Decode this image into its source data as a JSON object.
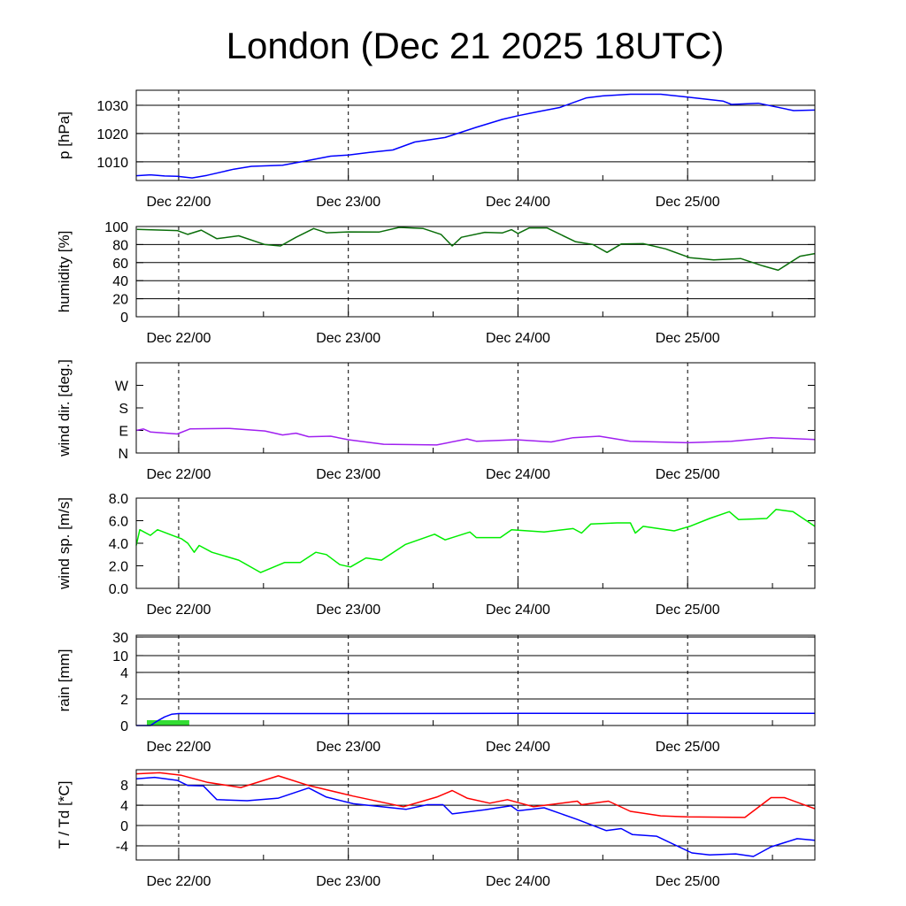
{
  "title": "London (Dec 21 2025 18UTC)",
  "x_axis": {
    "unit": "hours since Dec 21 18UTC",
    "range": [
      0,
      96
    ],
    "major_ticks": [
      6,
      30,
      54,
      78
    ],
    "labels": [
      "Dec 22/00",
      "Dec 23/00",
      "Dec 24/00",
      "Dec 25/00"
    ],
    "minor_ticks": [
      18,
      42,
      66,
      90
    ]
  },
  "chart_data": [
    {
      "type": "line",
      "id": "pressure",
      "ylabel": "p [hPa]",
      "ylim": [
        1003.4,
        1035.3
      ],
      "ticks": [
        1010,
        1020,
        1030
      ],
      "tick_labels": [
        "1010",
        "1020",
        "1030"
      ],
      "grid": true,
      "series": [
        {
          "name": "pressure",
          "color": "#0000ff",
          "x": [
            0,
            2,
            4,
            5.8,
            7.9,
            10,
            13.8,
            16.3,
            20.7,
            24,
            27.5,
            30,
            33,
            36.3,
            39.4,
            43.7,
            48.1,
            51.8,
            54,
            57,
            59.9,
            63.7,
            66,
            69.9,
            74.2,
            78,
            83,
            84.2,
            88,
            93,
            96
          ],
          "y": [
            1005.1,
            1005.4,
            1005.0,
            1004.9,
            1004.3,
            1005.2,
            1007.4,
            1008.4,
            1008.8,
            1010.3,
            1012.0,
            1012.4,
            1013.3,
            1014.2,
            1017.0,
            1018.6,
            1022.2,
            1025.0,
            1026.3,
            1027.8,
            1029.2,
            1032.6,
            1033.3,
            1033.9,
            1033.9,
            1032.9,
            1031.5,
            1030.3,
            1030.7,
            1028.1,
            1028.3
          ]
        }
      ]
    },
    {
      "type": "line",
      "id": "humidity",
      "ylabel": "humidity [%]",
      "ylim": [
        0,
        100
      ],
      "ticks": [
        0,
        20,
        40,
        60,
        80,
        100
      ],
      "tick_labels": [
        "0",
        "20",
        "40",
        "60",
        "80",
        "100"
      ],
      "grid": true,
      "series": [
        {
          "name": "humidity",
          "color": "#0a6e0a",
          "x": [
            0.1,
            5.8,
            7.3,
            9.2,
            11.4,
            14.5,
            18.2,
            20.4,
            22.6,
            25.1,
            26.9,
            30,
            34.4,
            37.2,
            40.6,
            43.1,
            44.7,
            46,
            49.3,
            51.8,
            53.1,
            54,
            55.6,
            58.1,
            62.1,
            64.6,
            66.6,
            68.6,
            71.7,
            74.9,
            78.3,
            81.7,
            85.5,
            88.6,
            90.8,
            93.9,
            96
          ],
          "y": [
            96.8,
            95.5,
            91.3,
            96,
            86.5,
            89.7,
            80,
            78.4,
            88,
            97.7,
            93,
            94,
            93.9,
            99,
            97.7,
            91.3,
            78.4,
            88,
            93.5,
            92.9,
            96.5,
            92.3,
            98.4,
            98.4,
            83.2,
            80,
            71.3,
            80.6,
            81,
            75.2,
            65.5,
            62.9,
            64.5,
            56.5,
            51.6,
            67.1,
            70
          ]
        }
      ]
    },
    {
      "type": "line",
      "id": "wind-direction",
      "ylabel": "wind dir. [deg.]",
      "ylim": [
        0,
        360
      ],
      "ticks": [
        0,
        90,
        180,
        270
      ],
      "tick_labels": [
        "N",
        "E",
        "S",
        "W"
      ],
      "grid": false,
      "series": [
        {
          "name": "wind direction",
          "color": "#a020f0",
          "x": [
            0,
            1,
            2,
            5.8,
            7.6,
            13.2,
            18.2,
            20.7,
            22.6,
            24.4,
            27.5,
            30,
            35,
            42.5,
            46.8,
            48.1,
            53.7,
            58.7,
            61.8,
            65.5,
            69.9,
            78,
            84.2,
            89.8,
            96
          ],
          "y": [
            90,
            96,
            84,
            76,
            96,
            98,
            88,
            72,
            79,
            65,
            67,
            53,
            35,
            32,
            56,
            47,
            53,
            44,
            61,
            67,
            47,
            41,
            47,
            61,
            54
          ]
        }
      ]
    },
    {
      "type": "line",
      "id": "wind-speed",
      "ylabel": "wind sp. [m/s]",
      "ylim": [
        0,
        8
      ],
      "ticks": [
        0,
        2,
        4,
        6,
        8
      ],
      "tick_labels": [
        "0.0",
        "2.0",
        "4.0",
        "6.0",
        "8.0"
      ],
      "grid": false,
      "series": [
        {
          "name": "wind speed",
          "color": "#00ee00",
          "x": [
            0,
            0.5,
            2,
            3,
            5.1,
            6.4,
            7.3,
            8.2,
            8.9,
            10.7,
            14.5,
            17.6,
            21,
            23.2,
            25.4,
            26.9,
            28.8,
            30.3,
            32.5,
            34.7,
            38.1,
            42.2,
            43.7,
            47.2,
            48.1,
            51.5,
            53.1,
            57.7,
            61.8,
            63,
            64.3,
            68,
            69.9,
            70.6,
            71.7,
            76.1,
            78.3,
            81.1,
            83.9,
            85.2,
            89.2,
            90.5,
            92.9,
            96
          ],
          "y": [
            3.8,
            5.2,
            4.7,
            5.2,
            4.7,
            4.4,
            4.0,
            3.2,
            3.8,
            3.2,
            2.5,
            1.4,
            2.3,
            2.3,
            3.2,
            3.0,
            2.1,
            1.9,
            2.7,
            2.5,
            3.9,
            4.8,
            4.3,
            5.0,
            4.5,
            4.5,
            5.2,
            5.0,
            5.3,
            4.9,
            5.7,
            5.8,
            5.8,
            4.9,
            5.5,
            5.1,
            5.5,
            6.2,
            6.8,
            6.1,
            6.2,
            7.0,
            6.8,
            5.5
          ]
        }
      ]
    },
    {
      "type": "line",
      "id": "rain",
      "ylabel": "rain [mm]",
      "ylim": [
        0,
        30
      ],
      "scale": "custom",
      "ticks": [
        0,
        2,
        4,
        10,
        30
      ],
      "tick_labels": [
        "0",
        "2",
        "4",
        "10",
        "30"
      ],
      "grid": true,
      "bars": [
        {
          "name": "rain",
          "color": "#33dd33",
          "x_start": 1.5,
          "x_end": 7.5,
          "value": 0.4
        }
      ],
      "series": [
        {
          "name": "accumulated rain",
          "color": "#0000ff",
          "x": [
            0,
            2,
            3,
            4,
            5,
            6,
            30,
            54,
            78,
            96
          ],
          "y": [
            0,
            0,
            0.35,
            0.65,
            0.85,
            0.9,
            0.9,
            0.92,
            0.92,
            0.92
          ]
        }
      ]
    },
    {
      "type": "line",
      "id": "temperature",
      "ylabel": "T / Td [*C]",
      "ylim": [
        -6.8,
        11
      ],
      "ticks": [
        -4,
        0,
        4,
        8
      ],
      "tick_labels": [
        "-4",
        "0",
        "4",
        "8"
      ],
      "grid": true,
      "series": [
        {
          "name": "T",
          "color": "#ff0000",
          "x": [
            0,
            3.3,
            6.4,
            10.1,
            14.8,
            20.1,
            24.4,
            30.7,
            37.8,
            42.5,
            44.7,
            46.8,
            50,
            52.5,
            56.2,
            62.4,
            63,
            66.8,
            69.9,
            74.2,
            78,
            86.1,
            89.8,
            91.7,
            96
          ],
          "y": [
            10.2,
            10.4,
            9.9,
            8.5,
            7.5,
            9.8,
            7.9,
            5.8,
            3.7,
            5.6,
            6.9,
            5.4,
            4.4,
            5.1,
            3.7,
            4.8,
            4.1,
            4.8,
            2.8,
            1.9,
            1.7,
            1.6,
            5.5,
            5.5,
            3.3
          ]
        },
        {
          "name": "Td",
          "color": "#0000ff",
          "x": [
            0,
            2.6,
            5.8,
            7.3,
            9.5,
            11.4,
            15.7,
            20.1,
            24.4,
            26.9,
            30.7,
            38.2,
            41.2,
            43.4,
            44.7,
            49.3,
            53,
            54,
            57.7,
            62.4,
            66.5,
            68.6,
            70.2,
            73.6,
            78.6,
            81.1,
            84.8,
            87.3,
            89.8,
            93.5,
            96
          ],
          "y": [
            9.2,
            9.5,
            8.9,
            7.9,
            7.8,
            5.1,
            4.9,
            5.4,
            7.4,
            5.6,
            4.3,
            3.2,
            4.1,
            4.1,
            2.3,
            3.1,
            3.9,
            2.9,
            3.5,
            1.2,
            -1.0,
            -0.6,
            -1.8,
            -2.1,
            -5.4,
            -5.8,
            -5.6,
            -6.1,
            -4.2,
            -2.6,
            -2.9
          ]
        }
      ]
    }
  ]
}
